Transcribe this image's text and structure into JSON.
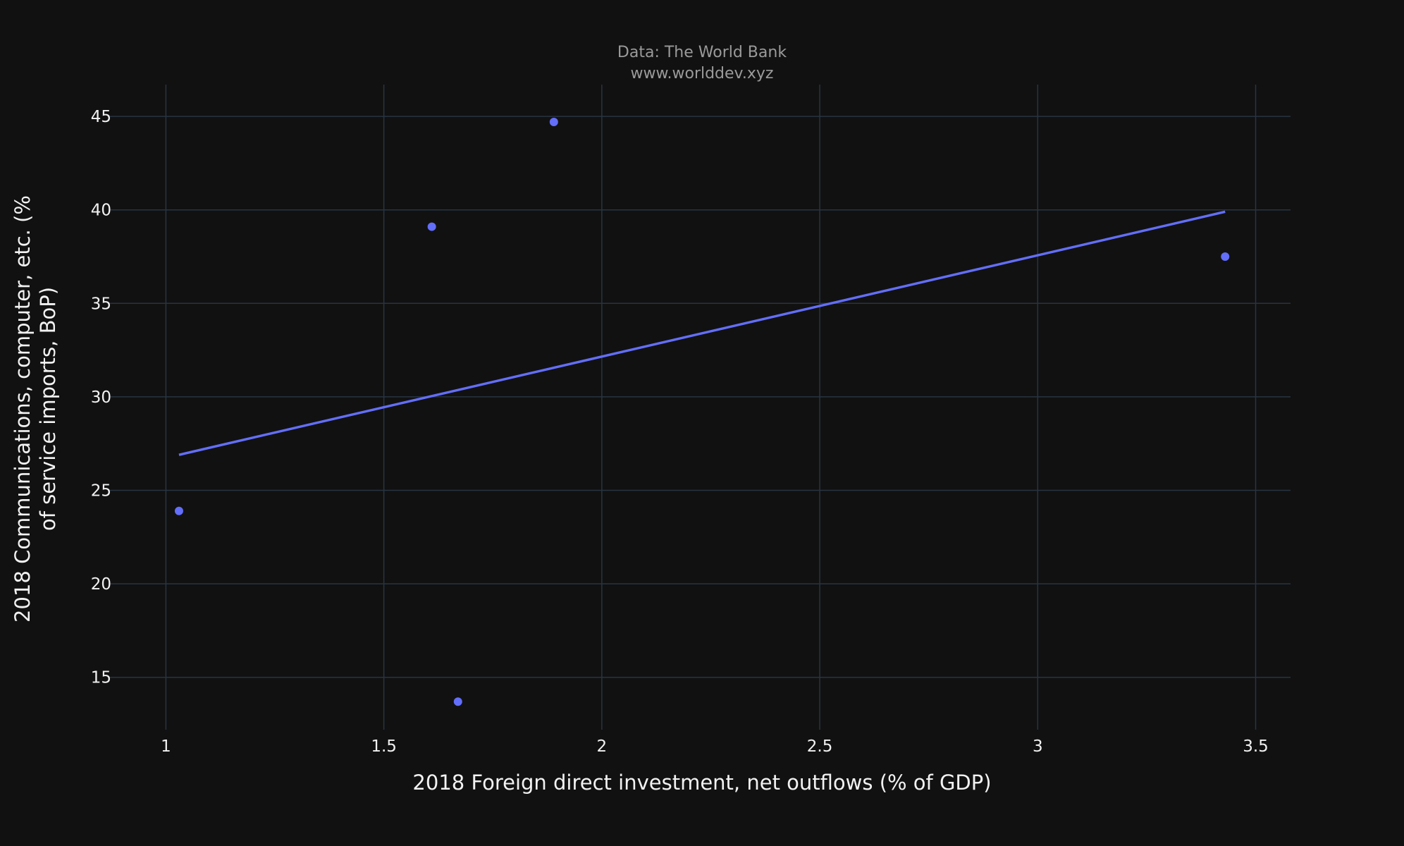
{
  "chart_data": {
    "type": "scatter",
    "title_lines": [
      "Data: The World Bank",
      "www.worlddev.xyz"
    ],
    "xlabel": "2018 Foreign direct investment, net outflows (% of GDP)",
    "ylabel_lines": [
      "2018 Communications, computer, etc. (%",
      "of service imports, BoP)"
    ],
    "x_ticks": [
      1,
      1.5,
      2,
      2.5,
      3,
      3.5
    ],
    "x_tick_labels": [
      "1",
      "1.5",
      "2",
      "2.5",
      "3",
      "3.5"
    ],
    "y_ticks": [
      15,
      20,
      25,
      30,
      35,
      40,
      45
    ],
    "y_tick_labels": [
      "15",
      "20",
      "25",
      "30",
      "35",
      "40",
      "45"
    ],
    "xlim": [
      0.87,
      3.58
    ],
    "ylim": [
      12.2,
      46.7
    ],
    "grid": true,
    "series": [
      {
        "type": "scatter",
        "x": [
          1.03,
          1.61,
          1.67,
          1.89,
          3.43
        ],
        "y": [
          23.9,
          39.1,
          13.7,
          44.7,
          37.5
        ]
      },
      {
        "type": "line",
        "x": [
          1.03,
          3.43
        ],
        "y": [
          26.9,
          39.9
        ]
      }
    ],
    "colors": {
      "background": "#111111",
      "marker": "#636efa",
      "line": "#636efa",
      "grid": "#283442",
      "text": "#f2f2f2",
      "title": "#9a9a9a"
    }
  }
}
